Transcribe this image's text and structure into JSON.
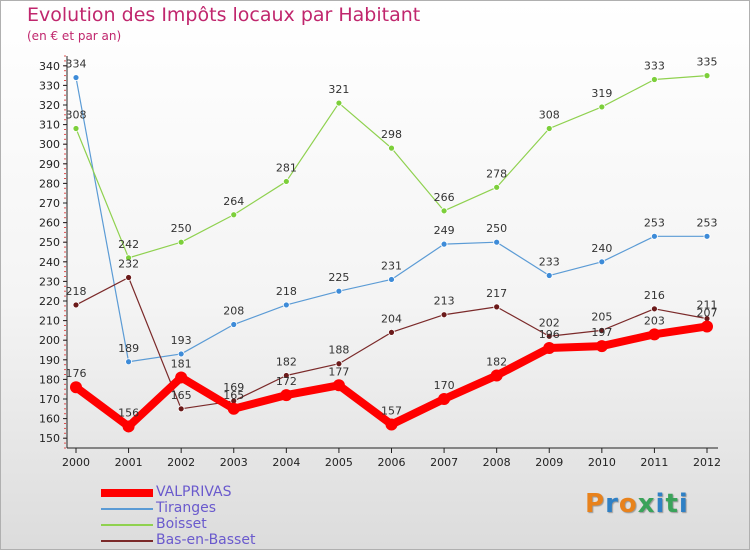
{
  "header": {
    "title": "Evolution des Impôts locaux par Habitant",
    "subtitle": "(en € et par an)"
  },
  "logo": {
    "text": "Proxiti",
    "colors": [
      "#e8821c",
      "#2f80c5",
      "#e8821c",
      "#3aa35a",
      "#2f80c5",
      "#3aa35a",
      "#2f80c5"
    ]
  },
  "chart_data": {
    "type": "line",
    "title": "Evolution des Impôts locaux par Habitant",
    "subtitle": "(en € et par an)",
    "xlabel": "",
    "ylabel": "",
    "x": [
      "2000",
      "2001",
      "2002",
      "2003",
      "2004",
      "2005",
      "2006",
      "2007",
      "2008",
      "2009",
      "2010",
      "2011",
      "2012"
    ],
    "ylim": [
      145,
      345
    ],
    "yticks": [
      150,
      160,
      170,
      180,
      190,
      200,
      210,
      220,
      230,
      240,
      250,
      260,
      270,
      280,
      290,
      300,
      310,
      320,
      330,
      340
    ],
    "grid": false,
    "legend_position": "bottom-left",
    "series": [
      {
        "name": "VALPRIVAS",
        "color": "#ff0000",
        "values": [
          176,
          156,
          181,
          165,
          172,
          177,
          157,
          170,
          182,
          196,
          197,
          203,
          207
        ]
      },
      {
        "name": "Tiranges",
        "color": "#5b9bd5",
        "values": [
          334,
          189,
          193,
          208,
          218,
          225,
          231,
          249,
          250,
          233,
          240,
          253,
          253
        ]
      },
      {
        "name": "Boisset",
        "color": "#8fd14f",
        "values": [
          308,
          242,
          250,
          264,
          281,
          321,
          298,
          266,
          278,
          308,
          319,
          333,
          335
        ]
      },
      {
        "name": "Bas-en-Basset",
        "color": "#7b2a2a",
        "values": [
          218,
          232,
          165,
          169,
          182,
          188,
          204,
          213,
          217,
          202,
          205,
          216,
          211
        ]
      }
    ]
  }
}
